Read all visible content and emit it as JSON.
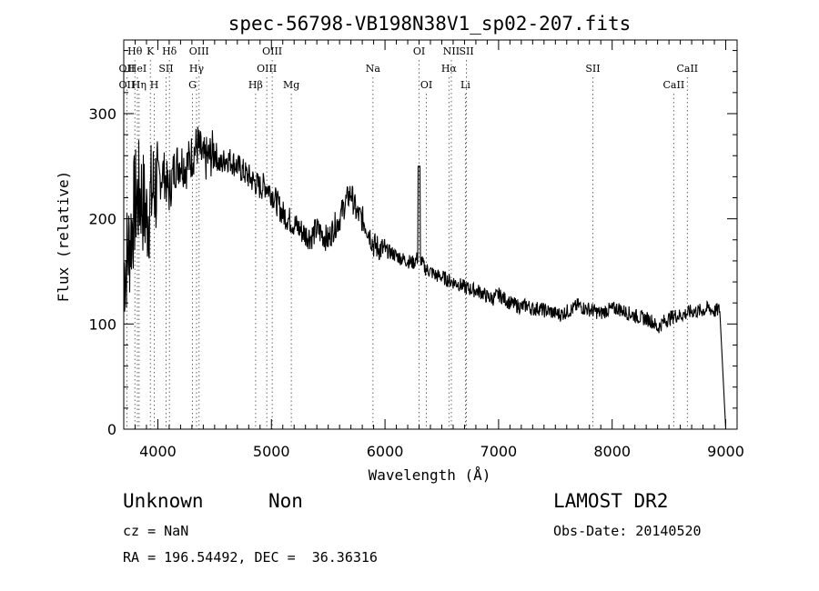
{
  "chart_data": {
    "type": "line",
    "title": "spec-56798-VB198N38V1_sp02-207.fits",
    "xlabel": "Wavelength (Å)",
    "ylabel": "Flux (relative)",
    "xlim": [
      3700,
      9100
    ],
    "ylim": [
      0,
      370
    ],
    "xticks": [
      4000,
      5000,
      6000,
      7000,
      8000,
      9000
    ],
    "yticks": [
      0,
      100,
      200,
      300
    ],
    "grid": false,
    "series": [
      {
        "x": [
          3700,
          3750,
          3800,
          3850,
          3900,
          3950,
          4000,
          4050,
          4100,
          4150,
          4200,
          4250,
          4300,
          4350,
          4400,
          4450,
          4500,
          4550,
          4600,
          4650,
          4700,
          4750,
          4800,
          4850,
          4900,
          4950,
          5000,
          5050,
          5100,
          5150,
          5200,
          5250,
          5300,
          5350,
          5400,
          5450,
          5500,
          5550,
          5600,
          5650,
          5700,
          5750,
          5800,
          5850,
          5900,
          5950,
          6000,
          6050,
          6100,
          6150,
          6200,
          6250,
          6300,
          6350,
          6400,
          6450,
          6500,
          6550,
          6600,
          6650,
          6700,
          6750,
          6800,
          6850,
          6900,
          6950,
          7000,
          7050,
          7100,
          7150,
          7200,
          7250,
          7300,
          7350,
          7400,
          7450,
          7500,
          7550,
          7600,
          7650,
          7700,
          7750,
          7800,
          7850,
          7900,
          7950,
          8000,
          8050,
          8100,
          8150,
          8200,
          8250,
          8300,
          8350,
          8400,
          8450,
          8500,
          8550,
          8600,
          8650,
          8700,
          8750,
          8800,
          8850,
          8900,
          8950,
          9000
        ],
        "y": [
          150,
          175,
          215,
          225,
          200,
          225,
          235,
          245,
          225,
          250,
          255,
          250,
          260,
          270,
          255,
          258,
          265,
          250,
          258,
          255,
          250,
          245,
          240,
          235,
          230,
          232,
          225,
          215,
          205,
          200,
          195,
          190,
          185,
          183,
          190,
          185,
          180,
          192,
          200,
          215,
          225,
          205,
          200,
          190,
          175,
          172,
          170,
          168,
          165,
          162,
          160,
          158,
          165,
          153,
          150,
          146,
          145,
          142,
          140,
          138,
          135,
          133,
          132,
          130,
          126,
          124,
          128,
          124,
          120,
          118,
          116,
          118,
          114,
          115,
          113,
          112,
          110,
          109,
          112,
          114,
          118,
          115,
          114,
          112,
          110,
          113,
          114,
          115,
          112,
          110,
          108,
          106,
          105,
          103,
          96,
          102,
          105,
          108,
          108,
          110,
          112,
          112,
          113,
          115,
          112,
          114,
          0
        ]
      }
    ],
    "spectral_lines": [
      {
        "name": "OII",
        "x": 3727,
        "row": 2
      },
      {
        "name": "OII",
        "x": 3727,
        "row": 3
      },
      {
        "name": "Hθ",
        "x": 3798,
        "row": 1
      },
      {
        "name": "Hη",
        "x": 3835,
        "row": 3
      },
      {
        "name": "HeI",
        "x": 3820,
        "row": 2
      },
      {
        "name": "K",
        "x": 3934,
        "row": 1
      },
      {
        "name": "H",
        "x": 3969,
        "row": 3
      },
      {
        "name": "SII",
        "x": 4072,
        "row": 2
      },
      {
        "name": "Hδ",
        "x": 4102,
        "row": 1
      },
      {
        "name": "OIII",
        "x": 4363,
        "row": 1
      },
      {
        "name": "Hγ",
        "x": 4341,
        "row": 2
      },
      {
        "name": "G",
        "x": 4305,
        "row": 3
      },
      {
        "name": "Hβ",
        "x": 4861,
        "row": 3
      },
      {
        "name": "OIII",
        "x": 4959,
        "row": 2
      },
      {
        "name": "OIII",
        "x": 5007,
        "row": 1
      },
      {
        "name": "Mg",
        "x": 5175,
        "row": 3
      },
      {
        "name": "Na",
        "x": 5894,
        "row": 2
      },
      {
        "name": "OI",
        "x": 6300,
        "row": 1
      },
      {
        "name": "OI",
        "x": 6364,
        "row": 3
      },
      {
        "name": "Hα",
        "x": 6563,
        "row": 2
      },
      {
        "name": "NII",
        "x": 6584,
        "row": 1
      },
      {
        "name": "SII",
        "x": 6717,
        "row": 1
      },
      {
        "name": "Li",
        "x": 6708,
        "row": 3
      },
      {
        "name": "SII",
        "x": 7830,
        "row": 2
      },
      {
        "name": "CaII",
        "x": 8542,
        "row": 3
      },
      {
        "name": "CaII",
        "x": 8662,
        "row": 2
      }
    ]
  },
  "info": {
    "class": "Unknown",
    "subclass": "Non",
    "survey": "LAMOST DR2",
    "cz": "cz = NaN",
    "obs_date": "Obs-Date: 20140520",
    "radec": "RA = 196.54492, DEC =  36.36316"
  }
}
